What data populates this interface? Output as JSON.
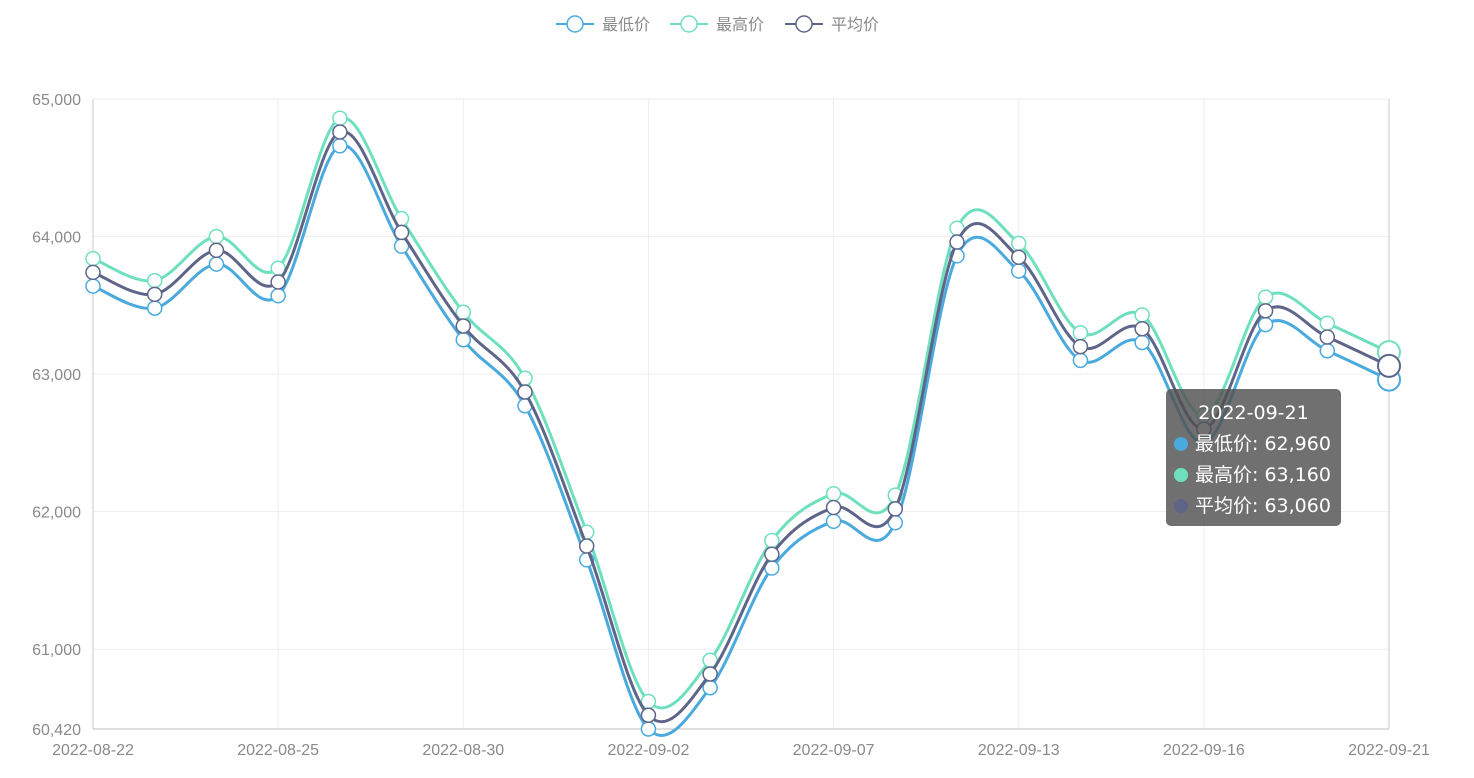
{
  "chart_data": {
    "type": "line",
    "smooth": true,
    "title": "",
    "xlabel": "",
    "ylabel": "",
    "x": [
      "2022-08-22",
      "2022-08-23",
      "2022-08-24",
      "2022-08-25",
      "2022-08-26",
      "2022-08-29",
      "2022-08-30",
      "2022-08-31",
      "2022-09-01",
      "2022-09-02",
      "2022-09-05",
      "2022-09-06",
      "2022-09-07",
      "2022-09-08",
      "2022-09-09",
      "2022-09-13",
      "2022-09-14",
      "2022-09-15",
      "2022-09-16",
      "2022-09-19",
      "2022-09-20",
      "2022-09-21"
    ],
    "x_tick_labels": [
      "2022-08-22",
      "2022-08-25",
      "2022-08-30",
      "2022-09-02",
      "2022-09-07",
      "2022-09-13",
      "2022-09-16",
      "2022-09-21"
    ],
    "y_ticks": [
      60420,
      61000,
      62000,
      63000,
      64000,
      65000
    ],
    "y_tick_labels": [
      "60,420",
      "61,000",
      "62,000",
      "63,000",
      "64,000",
      "65,000"
    ],
    "ylim": [
      60420,
      65000
    ],
    "grid": true,
    "legend_position": "top-center",
    "series": [
      {
        "name": "最低价",
        "color": "#4aa9dd",
        "values": [
          63640,
          63480,
          63800,
          63570,
          64660,
          63930,
          63250,
          62770,
          61650,
          60420,
          60720,
          61590,
          61930,
          61920,
          63860,
          63750,
          63100,
          63230,
          62500,
          63360,
          63170,
          62960
        ]
      },
      {
        "name": "最高价",
        "color": "#6ee0bd",
        "values": [
          63840,
          63680,
          64000,
          63770,
          64860,
          64130,
          63450,
          62970,
          61850,
          60620,
          60920,
          61790,
          62130,
          62120,
          64060,
          63950,
          63300,
          63430,
          62700,
          63560,
          63370,
          63160
        ]
      },
      {
        "name": "平均价",
        "color": "#5f6589",
        "values": [
          63740,
          63580,
          63900,
          63670,
          64760,
          64030,
          63350,
          62870,
          61750,
          60520,
          60820,
          61690,
          62030,
          62020,
          63960,
          63850,
          63200,
          63330,
          62600,
          63460,
          63270,
          63060
        ]
      }
    ]
  },
  "tooltip": {
    "date": "2022-09-21",
    "rows": [
      {
        "label": "最低价: 62,960",
        "color": "#4aa9dd"
      },
      {
        "label": "最高价: 63,160",
        "color": "#6ee0bd"
      },
      {
        "label": "平均价: 63,060",
        "color": "#5f6589"
      }
    ]
  }
}
